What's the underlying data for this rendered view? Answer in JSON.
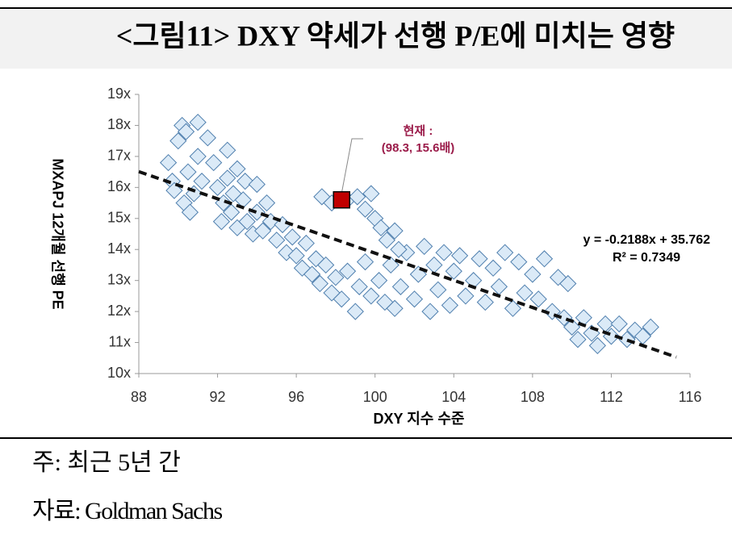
{
  "chart_data": {
    "type": "scatter",
    "title": "<그림11> DXY 약세가 선행 P/E에 미치는 영향",
    "x_label": "DXY 지수 수준",
    "y_label": "MXAPJ 12개월 선행 PE",
    "color": "#dbeaf7",
    "edge_color": "#4f7fae",
    "x": [
      89.5,
      89.7,
      90,
      90.2,
      90.4,
      90.5,
      90.8,
      90.3,
      91,
      91.2,
      91.5,
      91,
      89.8,
      90.6,
      91.8,
      92,
      92.3,
      92.5,
      92.8,
      92.2,
      92.7,
      93,
      93.3,
      93.5,
      93.8,
      94,
      94.3,
      94.7,
      95,
      95.3,
      95.5,
      95.8,
      96,
      96.3,
      96.5,
      96.8,
      97,
      97.2,
      97.5,
      97.8,
      98,
      98.3,
      98.6,
      99,
      99.2,
      99.5,
      99.8,
      100.2,
      100.5,
      100.8,
      101,
      101.3,
      101.6,
      102,
      102.2,
      102.5,
      102.8,
      103,
      103.2,
      103.5,
      103.8,
      104,
      104.3,
      104.6,
      105,
      105.3,
      105.6,
      106,
      106.3,
      106.6,
      107,
      107.3,
      107.6,
      108,
      108.3,
      108.6,
      109,
      109.3,
      109.6,
      109.8,
      110,
      110.3,
      110.6,
      111,
      111.3,
      111.7,
      112,
      112.4,
      112.8,
      113.2,
      113.6,
      114,
      97.3,
      97.8,
      98.6,
      99.1,
      99.5,
      99.8,
      100,
      100.3,
      100.6,
      101,
      101.2,
      92.5,
      93,
      93.4,
      94,
      94.5
    ],
    "values": [
      16.8,
      16.2,
      17.5,
      18,
      17.8,
      16.5,
      15.8,
      15.5,
      17,
      16.2,
      17.6,
      18.1,
      15.9,
      15.2,
      16.8,
      16,
      15.5,
      16.3,
      15.8,
      14.9,
      15.2,
      14.7,
      15.6,
      14.9,
      14.5,
      15.2,
      14.6,
      14.9,
      14.3,
      14.8,
      13.9,
      14.4,
      13.8,
      13.4,
      14.2,
      13.2,
      13.7,
      12.9,
      13.5,
      12.6,
      13.1,
      12.4,
      13.3,
      12,
      12.8,
      13.6,
      12.5,
      13,
      12.3,
      13.5,
      12.1,
      12.8,
      13.9,
      12.4,
      13.2,
      14.1,
      12,
      13.5,
      12.7,
      13.9,
      12.2,
      13.3,
      13.8,
      12.5,
      13,
      13.7,
      12.3,
      13.4,
      12.8,
      13.9,
      12.1,
      13.6,
      12.6,
      13.2,
      12.4,
      13.7,
      12,
      13.1,
      11.8,
      12.9,
      11.5,
      11.1,
      11.8,
      11.3,
      10.9,
      11.6,
      11.2,
      11.6,
      11.1,
      11.4,
      11.2,
      11.5,
      15.7,
      15.5,
      15.6,
      15.7,
      15.3,
      15.8,
      15,
      14.7,
      14.3,
      14.6,
      14,
      17.2,
      16.6,
      16.2,
      16.1,
      15.5
    ],
    "highlight": {
      "x": 98.3,
      "y": 15.6,
      "color": "#c00000",
      "label": [
        "현재 :",
        "(98.3, 15.6배)"
      ]
    },
    "trendline": {
      "x": [
        88,
        115.3
      ],
      "y": [
        16.51,
        10.53
      ],
      "equation": "y = -0.2188x + 35.762",
      "r2": "R² = 0.7349"
    },
    "xlim": [
      88,
      116
    ],
    "xticks": [
      88,
      92,
      96,
      100,
      104,
      108,
      112,
      116
    ],
    "ylim": [
      10,
      19
    ],
    "yticks": [
      {
        "value": 10,
        "label": "10x"
      },
      {
        "value": 11,
        "label": "11x"
      },
      {
        "value": 12,
        "label": "12x"
      },
      {
        "value": 13,
        "label": "13x"
      },
      {
        "value": 14,
        "label": "14x"
      },
      {
        "value": 15,
        "label": "15x"
      },
      {
        "value": 16,
        "label": "16x"
      },
      {
        "value": 17,
        "label": "17x"
      },
      {
        "value": 18,
        "label": "18x"
      },
      {
        "value": 19,
        "label": "19x"
      }
    ]
  },
  "notes": [
    "주: 최근 5년 간",
    "자료: Goldman Sachs"
  ]
}
